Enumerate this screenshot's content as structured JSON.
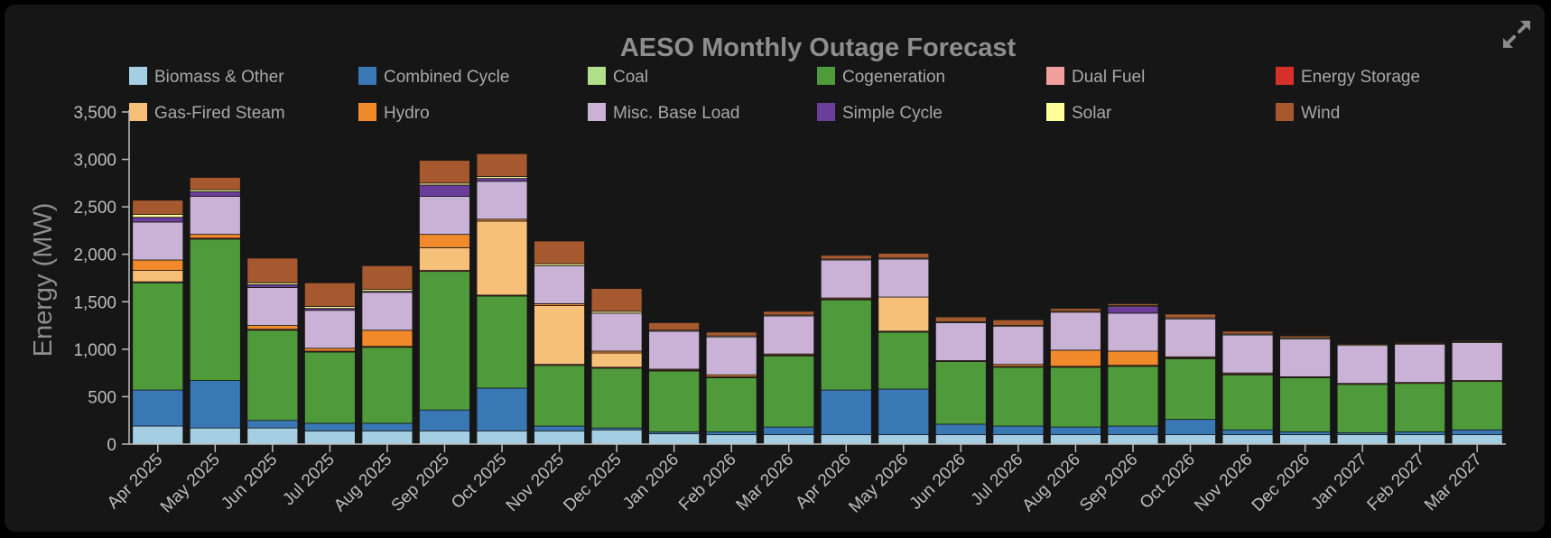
{
  "chart_data": {
    "type": "bar",
    "stacked": true,
    "title": "AESO Monthly Outage Forecast",
    "xlabel": "",
    "ylabel": "Energy (MW)",
    "ylim": [
      0,
      3500
    ],
    "yticks": [
      0,
      500,
      1000,
      1500,
      2000,
      2500,
      3000,
      3500
    ],
    "ytick_labels": [
      "0",
      "500",
      "1,000",
      "1,500",
      "2,000",
      "2,500",
      "3,000",
      "3,500"
    ],
    "grid": false,
    "legend_position": "top",
    "categories": [
      "Apr 2025",
      "May 2025",
      "Jun 2025",
      "Jul 2025",
      "Aug 2025",
      "Sep 2025",
      "Oct 2025",
      "Nov 2025",
      "Dec 2025",
      "Jan 2026",
      "Feb 2026",
      "Mar 2026",
      "Apr 2026",
      "May 2026",
      "Jun 2026",
      "Jul 2026",
      "Aug 2026",
      "Sep 2026",
      "Oct 2026",
      "Nov 2026",
      "Dec 2026",
      "Jan 2027",
      "Feb 2027",
      "Mar 2027"
    ],
    "series": [
      {
        "name": "Biomass & Other",
        "color": "#a6cee3",
        "values": [
          190,
          170,
          170,
          140,
          140,
          140,
          140,
          140,
          150,
          110,
          100,
          100,
          100,
          100,
          100,
          100,
          100,
          100,
          100,
          100,
          100,
          100,
          100,
          100
        ]
      },
      {
        "name": "Combined Cycle",
        "color": "#3a78b5",
        "values": [
          380,
          500,
          80,
          80,
          80,
          220,
          450,
          50,
          20,
          20,
          30,
          80,
          470,
          480,
          110,
          90,
          80,
          90,
          160,
          50,
          30,
          20,
          30,
          50
        ]
      },
      {
        "name": "Coal",
        "color": "#b2df8a",
        "values": [
          0,
          0,
          0,
          0,
          0,
          0,
          0,
          0,
          0,
          0,
          0,
          0,
          0,
          0,
          0,
          0,
          0,
          0,
          0,
          0,
          0,
          0,
          0,
          0
        ]
      },
      {
        "name": "Cogeneration",
        "color": "#4f9b3c",
        "values": [
          1130,
          1490,
          950,
          750,
          800,
          1460,
          970,
          640,
          630,
          640,
          570,
          750,
          950,
          600,
          660,
          620,
          630,
          630,
          640,
          580,
          570,
          510,
          510,
          510
        ]
      },
      {
        "name": "Dual Fuel",
        "color": "#f2a09e",
        "values": [
          0,
          0,
          0,
          0,
          0,
          0,
          0,
          0,
          0,
          0,
          0,
          0,
          0,
          0,
          0,
          0,
          0,
          0,
          0,
          0,
          0,
          0,
          0,
          0
        ]
      },
      {
        "name": "Energy Storage",
        "color": "#d7302b",
        "values": [
          10,
          10,
          10,
          10,
          10,
          10,
          10,
          10,
          10,
          10,
          10,
          10,
          10,
          10,
          10,
          10,
          10,
          10,
          10,
          10,
          10,
          10,
          10,
          10
        ]
      },
      {
        "name": "Gas-Fired Steam",
        "color": "#f6c079",
        "values": [
          120,
          0,
          0,
          0,
          0,
          240,
          780,
          620,
          150,
          0,
          0,
          0,
          0,
          360,
          0,
          0,
          0,
          0,
          0,
          0,
          0,
          0,
          0,
          0
        ]
      },
      {
        "name": "Hydro",
        "color": "#f08a2b",
        "values": [
          110,
          40,
          40,
          30,
          170,
          140,
          20,
          20,
          20,
          10,
          20,
          10,
          10,
          0,
          0,
          20,
          170,
          150,
          10,
          10,
          0,
          0,
          0,
          0
        ]
      },
      {
        "name": "Misc. Base Load",
        "color": "#c9b2d6",
        "values": [
          400,
          400,
          400,
          400,
          400,
          400,
          400,
          400,
          400,
          400,
          400,
          400,
          400,
          400,
          400,
          400,
          400,
          400,
          400,
          400,
          400,
          400,
          400,
          400
        ]
      },
      {
        "name": "Simple Cycle",
        "color": "#6a3d9a",
        "values": [
          50,
          50,
          30,
          20,
          10,
          120,
          30,
          0,
          0,
          0,
          0,
          0,
          0,
          0,
          0,
          0,
          0,
          70,
          0,
          0,
          0,
          0,
          0,
          0
        ]
      },
      {
        "name": "Solar",
        "color": "#ffff99",
        "values": [
          30,
          20,
          20,
          20,
          20,
          20,
          20,
          20,
          20,
          10,
          10,
          10,
          10,
          10,
          10,
          10,
          10,
          10,
          10,
          10,
          10,
          10,
          10,
          10
        ]
      },
      {
        "name": "Wind",
        "color": "#a6582e",
        "values": [
          150,
          130,
          260,
          250,
          250,
          240,
          240,
          240,
          240,
          80,
          40,
          40,
          40,
          50,
          50,
          60,
          30,
          20,
          40,
          30,
          20,
          10,
          10,
          10
        ]
      }
    ]
  },
  "ui": {
    "expand_icon": "expand-arrows-icon",
    "background": "#161616",
    "text_color": "#bdbdbd",
    "axis_color": "#bdbdbd"
  }
}
